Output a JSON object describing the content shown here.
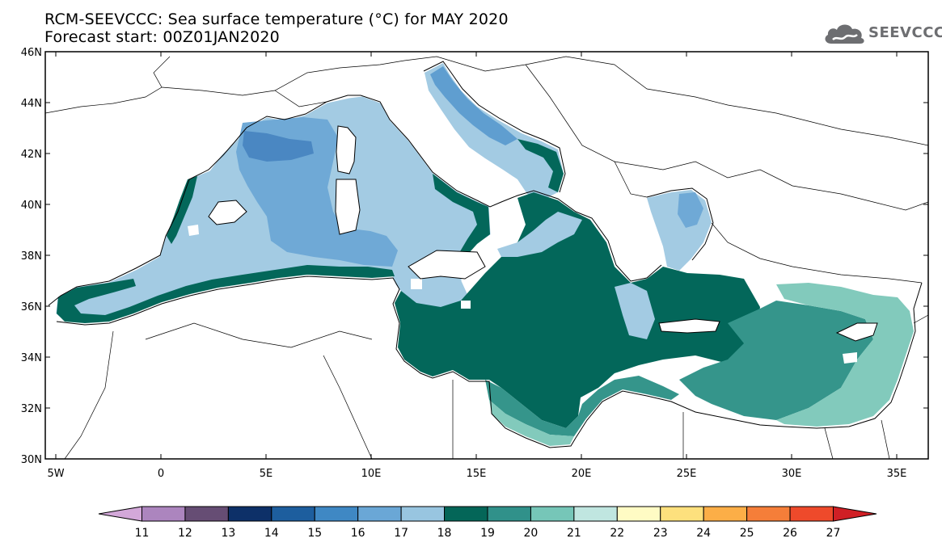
{
  "title_line1": "RCM-SEEVCCC: Sea surface temperature (°C) for MAY 2020",
  "title_line2": "Forecast start: 00Z01JAN2020",
  "logo_text": "SEEVCCC",
  "map": {
    "lon_range": [
      -5.5,
      36.5
    ],
    "lat_range": [
      30,
      46
    ],
    "lat_ticks": [
      "46N",
      "44N",
      "42N",
      "40N",
      "38N",
      "36N",
      "34N",
      "32N",
      "30N"
    ],
    "lon_ticks": [
      "5W",
      "0",
      "5E",
      "10E",
      "15E",
      "20E",
      "25E",
      "30E",
      "35E"
    ],
    "land_color": "#ffffff",
    "coastline_color": "#000000"
  },
  "colorbar": {
    "labels": [
      "11",
      "12",
      "13",
      "14",
      "15",
      "16",
      "17",
      "18",
      "19",
      "20",
      "21",
      "22",
      "23",
      "24",
      "25",
      "26",
      "27"
    ],
    "colors": [
      "#d3a8d9",
      "#ac85be",
      "#664d74",
      "#0d3068",
      "#1d5e9e",
      "#3f88c4",
      "#6aa7d6",
      "#98c5e0",
      "#046658",
      "#30918a",
      "#76c6b8",
      "#c0e6e0",
      "#fffbc4",
      "#fde07d",
      "#fcae47",
      "#f57e39",
      "#ee4a2b",
      "#d01f25"
    ]
  },
  "sst_legend_colors": {
    "c15": "#4a87c2",
    "c16": "#5f9ed0",
    "c17": "#85b6da",
    "c18": "#a3cbe3",
    "c19": "#03675a",
    "c20": "#35958b",
    "c21": "#82cabc",
    "c22": "#c7e9e3"
  }
}
